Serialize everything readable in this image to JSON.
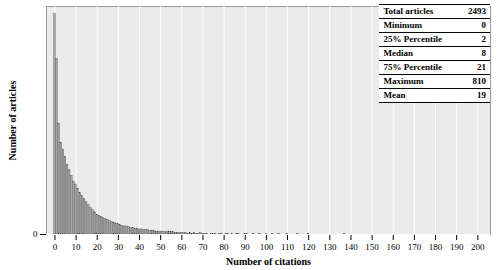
{
  "chart_data": {
    "type": "bar",
    "xlabel": "Number of citations",
    "ylabel": "Number of articles",
    "x": [
      0,
      1,
      2,
      3,
      4,
      5,
      6,
      7,
      8,
      9,
      10,
      11,
      12,
      13,
      14,
      15,
      16,
      17,
      18,
      19,
      20,
      21,
      22,
      23,
      24,
      25,
      26,
      27,
      28,
      29,
      30,
      31,
      32,
      33,
      34,
      35,
      36,
      37,
      38,
      39,
      40,
      41,
      42,
      43,
      44,
      45,
      46,
      47,
      48,
      49,
      50,
      51,
      52,
      53,
      54,
      55,
      56,
      57,
      58,
      59,
      60,
      61,
      62,
      63,
      64,
      65,
      66,
      67,
      68,
      69,
      70,
      71,
      72,
      73,
      74,
      75,
      76,
      77,
      78,
      79,
      80,
      81,
      82,
      83,
      84,
      85,
      86,
      87,
      88,
      89,
      90,
      91,
      92,
      93,
      94,
      95,
      96,
      97,
      98,
      99,
      100,
      103,
      106,
      110,
      115,
      120,
      137
    ],
    "values": [
      300,
      239,
      150,
      125,
      115,
      105,
      95,
      88,
      80,
      72,
      68,
      62,
      56,
      52,
      48,
      44,
      40,
      36,
      33,
      30,
      27,
      25,
      24,
      22,
      21,
      20,
      18,
      17,
      16,
      15,
      14,
      13,
      12,
      11,
      11,
      10,
      9,
      9,
      8,
      8,
      7,
      7,
      6,
      6,
      6,
      5,
      5,
      5,
      4,
      4,
      4,
      4,
      3,
      3,
      3,
      3,
      3,
      2,
      2,
      2,
      2,
      2,
      2,
      1,
      2,
      1,
      2,
      1,
      1,
      2,
      1,
      1,
      1,
      0,
      1,
      1,
      1,
      0,
      1,
      1,
      0,
      1,
      1,
      0,
      1,
      0,
      1,
      1,
      0,
      0,
      1,
      1,
      0,
      0,
      1,
      0,
      0,
      1,
      0,
      0,
      1,
      1,
      1,
      1,
      1,
      1,
      1
    ],
    "color": "#a6a6a6",
    "xlim": [
      -4,
      206
    ],
    "xticks": [
      0,
      10,
      20,
      30,
      40,
      50,
      60,
      70,
      80,
      90,
      100,
      110,
      120,
      130,
      140,
      150,
      160,
      170,
      180,
      190,
      200
    ],
    "ylim": [
      0,
      310
    ],
    "yticks": [
      0
    ],
    "grid": true,
    "table": [
      [
        "Total articles",
        2493
      ],
      [
        "Minimum",
        0
      ],
      [
        "25% Percentile",
        2
      ],
      [
        "Median",
        8
      ],
      [
        "75% Percentile",
        21
      ],
      [
        "Maximum",
        810
      ],
      [
        "Mean",
        19
      ]
    ]
  }
}
